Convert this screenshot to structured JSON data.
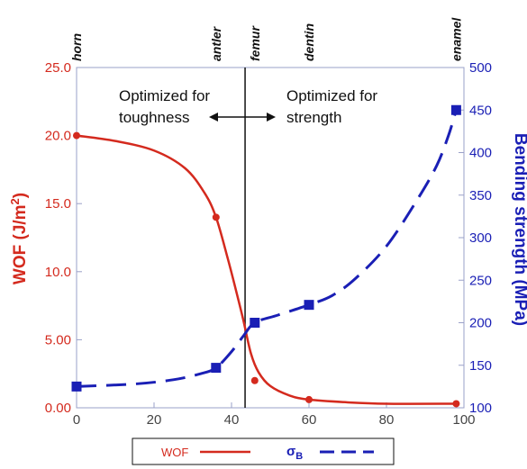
{
  "chart_data": {
    "type": "line",
    "xlim": [
      0,
      100
    ],
    "x_ticks": [
      "0",
      "20",
      "40",
      "60",
      "80",
      "100"
    ],
    "y_left": {
      "label_pre": "WOF (J/m",
      "label_sup": "2",
      "label_post": ")",
      "lim": [
        0,
        25
      ],
      "ticks": [
        "0.00",
        "5.00",
        "10.0",
        "15.0",
        "20.0",
        "25.0"
      ],
      "color": "#d42a1e"
    },
    "y_right": {
      "label": "Bending strength (MPa)",
      "lim": [
        100,
        500
      ],
      "ticks": [
        "100",
        "150",
        "200",
        "250",
        "300",
        "350",
        "400",
        "450",
        "500"
      ],
      "color": "#1a1fb5"
    },
    "materials": [
      {
        "name": "horn",
        "x": 0
      },
      {
        "name": "antler",
        "x": 36
      },
      {
        "name": "femur",
        "x": 46
      },
      {
        "name": "dentin",
        "x": 60
      },
      {
        "name": "enamel",
        "x": 98
      }
    ],
    "divider_x": 43.5,
    "annotations": {
      "left_line1": "Optimized for",
      "left_line2": "toughness",
      "right_line1": "Optimized for",
      "right_line2": "strength"
    },
    "series": [
      {
        "name": "WOF",
        "axis": "left",
        "color": "#d42a1e",
        "style": "solid",
        "points": [
          [
            0,
            20.0
          ],
          [
            36,
            14.0
          ],
          [
            46,
            2.0
          ],
          [
            60,
            0.6
          ],
          [
            98,
            0.3
          ]
        ],
        "curve": [
          [
            0,
            20.0
          ],
          [
            10,
            19.6
          ],
          [
            20,
            18.9
          ],
          [
            28,
            17.6
          ],
          [
            33,
            15.8
          ],
          [
            36,
            14.0
          ],
          [
            39,
            11.0
          ],
          [
            41,
            8.8
          ],
          [
            43,
            6.5
          ],
          [
            45,
            4.0
          ],
          [
            47,
            2.6
          ],
          [
            50,
            1.6
          ],
          [
            55,
            0.9
          ],
          [
            60,
            0.6
          ],
          [
            70,
            0.4
          ],
          [
            80,
            0.3
          ],
          [
            98,
            0.3
          ]
        ]
      },
      {
        "name": "σB",
        "legend_main": "σ",
        "legend_sub": "B",
        "axis": "right",
        "color": "#1a1fb5",
        "style": "dashed",
        "points": [
          [
            0,
            125
          ],
          [
            36,
            147
          ],
          [
            46,
            200
          ],
          [
            60,
            221
          ],
          [
            98,
            450
          ]
        ],
        "curve": [
          [
            0,
            125
          ],
          [
            15,
            128
          ],
          [
            25,
            133
          ],
          [
            32,
            140
          ],
          [
            36,
            147
          ],
          [
            40,
            166
          ],
          [
            43,
            184
          ],
          [
            46,
            200
          ],
          [
            52,
            209
          ],
          [
            60,
            221
          ],
          [
            66,
            232
          ],
          [
            72,
            252
          ],
          [
            80,
            290
          ],
          [
            88,
            345
          ],
          [
            93,
            385
          ],
          [
            96,
            420
          ],
          [
            98,
            450
          ]
        ]
      }
    ]
  }
}
